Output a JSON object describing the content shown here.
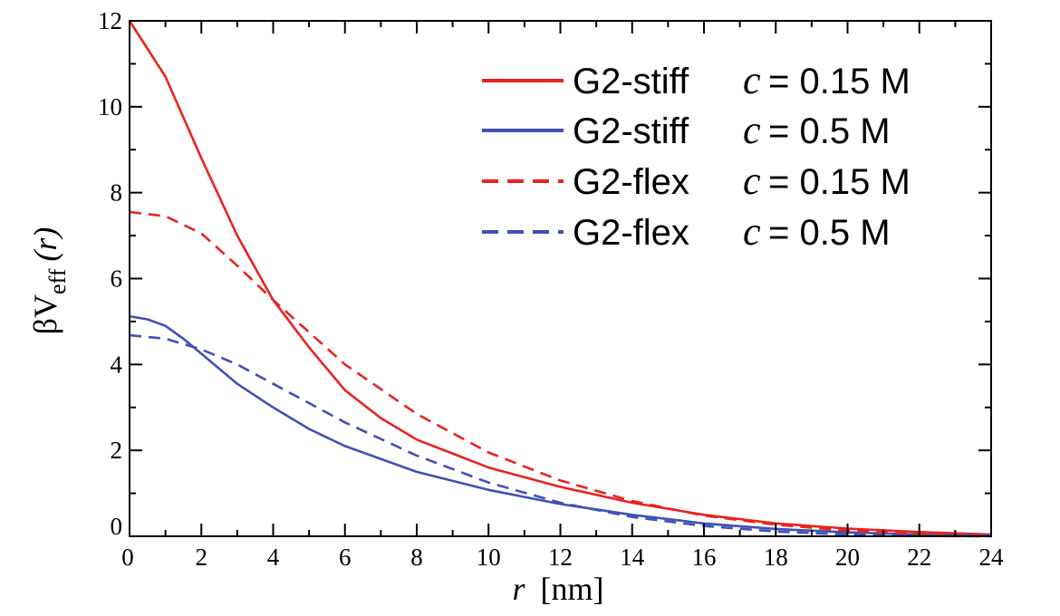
{
  "chart_data": {
    "type": "line",
    "xlabel": {
      "var": "r",
      "unit": "[nm]"
    },
    "ylabel": {
      "prefix": "βV",
      "sub": "eff",
      "arg": "(r)"
    },
    "xlim": [
      0,
      24
    ],
    "ylim": [
      0,
      12
    ],
    "xticks": [
      0,
      2,
      4,
      6,
      8,
      10,
      12,
      14,
      16,
      18,
      20,
      22,
      24
    ],
    "yticks": [
      0,
      2,
      4,
      6,
      8,
      10,
      12
    ],
    "grid": false,
    "legend_position": "top-right",
    "series": [
      {
        "name": "G2-stiff",
        "concentration": "c = 0.15 M",
        "conc_var": "c",
        "conc_value": "= 0.15 M",
        "color": "#e8231f",
        "dash": "solid",
        "x": [
          0,
          1,
          2,
          3,
          4,
          5,
          6,
          7,
          8,
          10,
          12,
          14,
          16,
          18,
          20,
          22,
          24
        ],
        "y": [
          12.0,
          10.7,
          8.8,
          7.0,
          5.5,
          4.4,
          3.4,
          2.75,
          2.25,
          1.6,
          1.15,
          0.78,
          0.5,
          0.3,
          0.18,
          0.1,
          0.04
        ]
      },
      {
        "name": "G2-stiff",
        "concentration": "c = 0.5 M",
        "conc_var": "c",
        "conc_value": "= 0.5 M",
        "color": "#3f51b5",
        "dash": "solid",
        "x": [
          0,
          0.5,
          1,
          1.5,
          2,
          3,
          4,
          5,
          6,
          8,
          10,
          12,
          14,
          16,
          18,
          20,
          22,
          24
        ],
        "y": [
          5.12,
          5.05,
          4.9,
          4.6,
          4.25,
          3.55,
          3.0,
          2.5,
          2.1,
          1.5,
          1.08,
          0.75,
          0.5,
          0.3,
          0.17,
          0.09,
          0.04,
          0.02
        ]
      },
      {
        "name": "G2-flex",
        "concentration": "c = 0.15 M",
        "conc_var": "c",
        "conc_value": "= 0.15 M",
        "color": "#e8231f",
        "dash": "dashed",
        "x": [
          0,
          1,
          2,
          3,
          4,
          6,
          8,
          10,
          12,
          14,
          16,
          18,
          20,
          22,
          24
        ],
        "y": [
          7.55,
          7.45,
          7.05,
          6.3,
          5.5,
          4.0,
          2.85,
          1.95,
          1.3,
          0.82,
          0.48,
          0.27,
          0.13,
          0.05,
          0.02
        ]
      },
      {
        "name": "G2-flex",
        "concentration": "c = 0.5 M",
        "conc_var": "c",
        "conc_value": "= 0.5 M",
        "color": "#3f51b5",
        "dash": "dashed",
        "x": [
          0,
          1,
          2,
          3,
          4,
          6,
          8,
          10,
          12,
          14,
          16,
          18,
          20,
          22,
          24
        ],
        "y": [
          4.68,
          4.6,
          4.35,
          4.0,
          3.55,
          2.65,
          1.88,
          1.25,
          0.78,
          0.45,
          0.24,
          0.11,
          0.04,
          0.01,
          0.0
        ]
      }
    ]
  }
}
